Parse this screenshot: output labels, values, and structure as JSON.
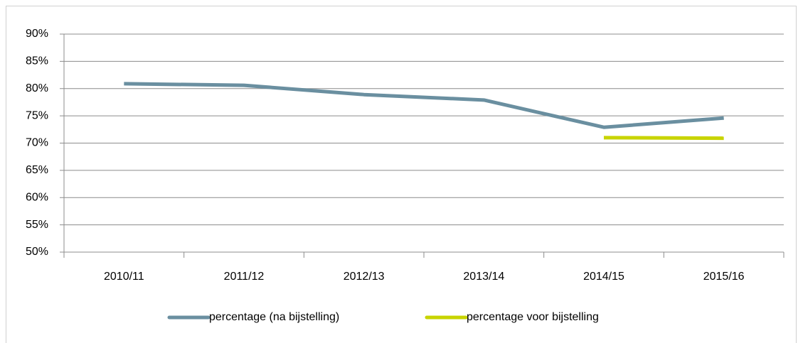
{
  "chart_data": {
    "type": "line",
    "categories": [
      "2010/11",
      "2011/12",
      "2012/13",
      "2013/14",
      "2014/15",
      "2015/16"
    ],
    "series": [
      {
        "name": "percentage (na bijstelling)",
        "color": "#6a8fa0",
        "values": [
          80.9,
          80.6,
          78.9,
          77.9,
          72.9,
          74.6
        ]
      },
      {
        "name": "percentage voor bijstelling",
        "color": "#c8d400",
        "values": [
          null,
          null,
          null,
          null,
          71.0,
          70.9
        ]
      }
    ],
    "ylim": [
      50,
      90
    ],
    "yticks": [
      {
        "value": 50,
        "label": "50%"
      },
      {
        "value": 55,
        "label": "55%"
      },
      {
        "value": 60,
        "label": "60%"
      },
      {
        "value": 65,
        "label": "65%"
      },
      {
        "value": 70,
        "label": "70%"
      },
      {
        "value": 75,
        "label": "75%"
      },
      {
        "value": 80,
        "label": "80%"
      },
      {
        "value": 85,
        "label": "85%"
      },
      {
        "value": 90,
        "label": "90%"
      }
    ],
    "grid": true,
    "legend": "bottom"
  }
}
